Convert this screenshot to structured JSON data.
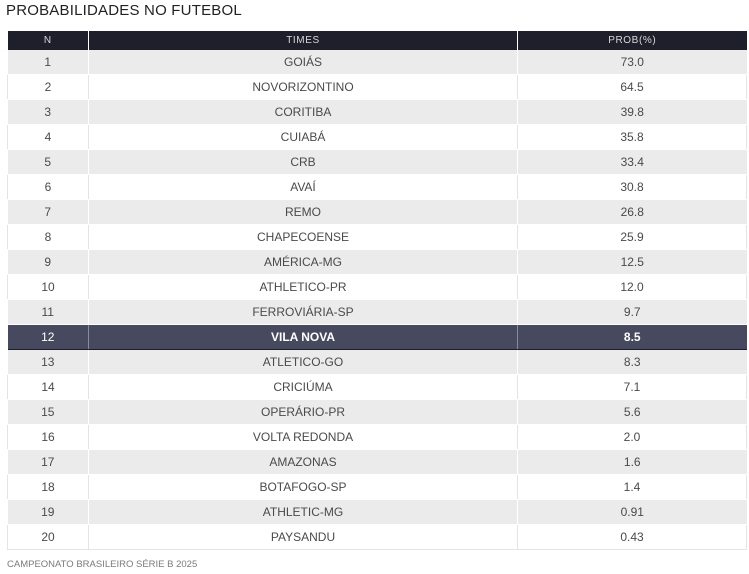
{
  "title": "PROBABILIDADES NO FUTEBOL",
  "table": {
    "headers": {
      "n": "N",
      "team": "TIMES",
      "prob": "PROB(%)"
    },
    "highlight_row": 12,
    "rows": [
      {
        "n": "1",
        "team": "GOIÁS",
        "prob": "73.0"
      },
      {
        "n": "2",
        "team": "NOVORIZONTINO",
        "prob": "64.5"
      },
      {
        "n": "3",
        "team": "CORITIBA",
        "prob": "39.8"
      },
      {
        "n": "4",
        "team": "CUIABÁ",
        "prob": "35.8"
      },
      {
        "n": "5",
        "team": "CRB",
        "prob": "33.4"
      },
      {
        "n": "6",
        "team": "AVAÍ",
        "prob": "30.8"
      },
      {
        "n": "7",
        "team": "REMO",
        "prob": "26.8"
      },
      {
        "n": "8",
        "team": "CHAPECOENSE",
        "prob": "25.9"
      },
      {
        "n": "9",
        "team": "AMÉRICA-MG",
        "prob": "12.5"
      },
      {
        "n": "10",
        "team": "ATHLETICO-PR",
        "prob": "12.0"
      },
      {
        "n": "11",
        "team": "FERROVIÁRIA-SP",
        "prob": "9.7"
      },
      {
        "n": "12",
        "team": "VILA NOVA",
        "prob": "8.5"
      },
      {
        "n": "13",
        "team": "ATLETICO-GO",
        "prob": "8.3"
      },
      {
        "n": "14",
        "team": "CRICIÚMA",
        "prob": "7.1"
      },
      {
        "n": "15",
        "team": "OPERÁRIO-PR",
        "prob": "5.6"
      },
      {
        "n": "16",
        "team": "VOLTA REDONDA",
        "prob": "2.0"
      },
      {
        "n": "17",
        "team": "AMAZONAS",
        "prob": "1.6"
      },
      {
        "n": "18",
        "team": "BOTAFOGO-SP",
        "prob": "1.4"
      },
      {
        "n": "19",
        "team": "ATHLETIC-MG",
        "prob": "0.91"
      },
      {
        "n": "20",
        "team": "PAYSANDU",
        "prob": "0.43"
      }
    ]
  },
  "footer": "CAMPEONATO BRASILEIRO SÉRIE B 2025",
  "colors": {
    "header_bg": "#1e1f2a",
    "highlight_bg": "#474a5e",
    "stripe_bg": "#ebebeb"
  }
}
